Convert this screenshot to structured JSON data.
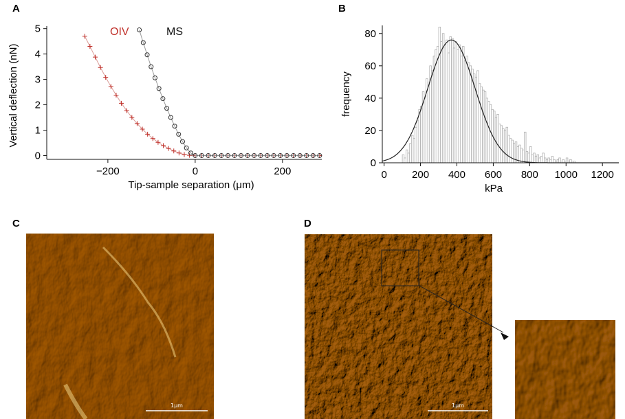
{
  "panels": {
    "a": "A",
    "b": "B",
    "c": "C",
    "d": "D"
  },
  "colors": {
    "oiv": "#c0302a",
    "ms": "#333333",
    "hist_bar": "#b0b0b0",
    "fit": "#222222",
    "afm_dark": "#3d1f02",
    "afm_mid": "#8a5a12",
    "afm_light": "#e8c060"
  },
  "chart_data": [
    {
      "type": "line",
      "xlabel": "Tip-sample separation (μm)",
      "ylabel": "Vertical deflection (nN)",
      "xlim": [
        -340,
        290
      ],
      "ylim": [
        -0.15,
        5.1
      ],
      "xticks": [
        -200,
        0,
        200
      ],
      "xtick_labels": [
        "−200",
        "0",
        "200"
      ],
      "yticks": [
        0,
        1,
        2,
        3,
        4,
        5
      ],
      "grid": false,
      "legend_placement": "top",
      "series": [
        {
          "name": "OIV",
          "marker": "plus",
          "x": [
            -253,
            -241,
            -229,
            -217,
            -205,
            -193,
            -181,
            -169,
            -157,
            -145,
            -133,
            -121,
            -109,
            -97,
            -85,
            -73,
            -61,
            -49,
            -37,
            -25,
            -13,
            0,
            15,
            30,
            45,
            60,
            75,
            90,
            105,
            120,
            135,
            150,
            165,
            180,
            195,
            210,
            225,
            240,
            255,
            270,
            285
          ],
          "y": [
            4.7,
            4.3,
            3.88,
            3.47,
            3.08,
            2.72,
            2.38,
            2.06,
            1.77,
            1.5,
            1.26,
            1.04,
            0.84,
            0.67,
            0.52,
            0.39,
            0.28,
            0.18,
            0.1,
            0.04,
            0.01,
            0,
            0,
            0,
            0,
            0,
            0,
            0,
            0,
            0,
            0,
            0,
            0,
            0,
            0,
            0,
            0,
            0,
            0,
            0,
            0
          ]
        },
        {
          "name": "MS",
          "marker": "circle",
          "x": [
            -128,
            -119,
            -110,
            -101,
            -92,
            -83,
            -74,
            -65,
            -56,
            -47,
            -38,
            -29,
            -20,
            -10,
            0,
            15,
            30,
            45,
            60,
            75,
            90,
            105,
            120,
            135,
            150,
            165,
            180,
            195,
            210,
            225,
            240,
            255,
            270,
            285
          ],
          "y": [
            4.95,
            4.45,
            3.97,
            3.5,
            3.06,
            2.64,
            2.24,
            1.86,
            1.5,
            1.16,
            0.84,
            0.55,
            0.3,
            0.1,
            0,
            0,
            0,
            0,
            0,
            0,
            0,
            0,
            0,
            0,
            0,
            0,
            0,
            0,
            0,
            0,
            0,
            0,
            0,
            0
          ]
        }
      ]
    },
    {
      "type": "bar",
      "xlabel": "kPa",
      "ylabel": "frequency",
      "xlim": [
        -10,
        1290
      ],
      "ylim": [
        0,
        85
      ],
      "xticks": [
        0,
        200,
        400,
        600,
        800,
        1000,
        1200
      ],
      "yticks": [
        0,
        20,
        40,
        60,
        80
      ],
      "bin_width": 10,
      "bin_starts": [
        100,
        110,
        120,
        130,
        140,
        150,
        160,
        170,
        180,
        190,
        200,
        210,
        220,
        230,
        240,
        250,
        260,
        270,
        280,
        290,
        300,
        310,
        320,
        330,
        340,
        350,
        360,
        370,
        380,
        390,
        400,
        410,
        420,
        430,
        440,
        450,
        460,
        470,
        480,
        490,
        500,
        510,
        520,
        530,
        540,
        550,
        560,
        570,
        580,
        590,
        600,
        610,
        620,
        630,
        640,
        650,
        660,
        670,
        680,
        690,
        700,
        710,
        720,
        730,
        740,
        750,
        760,
        770,
        780,
        790,
        800,
        810,
        820,
        830,
        840,
        850,
        860,
        870,
        880,
        890,
        900,
        910,
        920,
        930,
        940,
        950,
        960,
        970,
        980,
        990,
        1000,
        1010,
        1020,
        1030,
        1040,
        1050
      ],
      "values": [
        5,
        3,
        8,
        6,
        12,
        17,
        15,
        22,
        26,
        33,
        35,
        44,
        40,
        52,
        50,
        60,
        57,
        66,
        70,
        72,
        84,
        75,
        80,
        73,
        76,
        68,
        78,
        77,
        71,
        75,
        70,
        73,
        66,
        72,
        63,
        66,
        62,
        60,
        58,
        55,
        53,
        57,
        49,
        47,
        45,
        44,
        40,
        38,
        36,
        33,
        32,
        28,
        30,
        24,
        23,
        21,
        20,
        22,
        17,
        15,
        14,
        12,
        13,
        10,
        11,
        9,
        8,
        19,
        7,
        6,
        10,
        5,
        6,
        4,
        5,
        3,
        4,
        6,
        3,
        2,
        3,
        2,
        4,
        2,
        1,
        2,
        3,
        1,
        2,
        1,
        3,
        1,
        2,
        1,
        1,
        0
      ],
      "fit": {
        "type": "gaussian",
        "mean": 370,
        "sd": 130,
        "peak": 76
      },
      "grid": false
    }
  ],
  "images": {
    "c_scale": "1μm",
    "d_scale": "1μm"
  }
}
